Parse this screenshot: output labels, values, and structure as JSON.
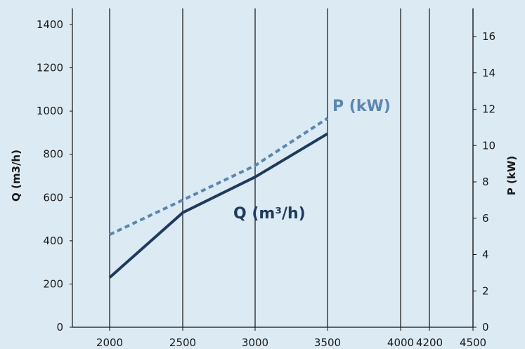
{
  "chart_data": {
    "type": "line",
    "background": "#dceaf3",
    "x": [
      2000,
      2500,
      3000,
      3500
    ],
    "x_ticks": [
      2000,
      2500,
      3000,
      3500,
      4000,
      4200,
      4500
    ],
    "y_left": {
      "label": "Q (m3/h)",
      "lim": [
        0,
        1400
      ],
      "ticks": [
        0,
        200,
        400,
        600,
        800,
        1000,
        1200,
        1400
      ]
    },
    "y_right": {
      "label": "P (kW)",
      "lim": [
        0,
        17
      ],
      "ticks": [
        0,
        2,
        4,
        6,
        8,
        10,
        12,
        14,
        16
      ]
    },
    "series": [
      {
        "name": "Q (m³/h)",
        "axis": "left",
        "style": "solid",
        "color": "#1f3a5f",
        "values": [
          230,
          530,
          695,
          895
        ]
      },
      {
        "name": "P (kW)",
        "axis": "right",
        "style": "dashed",
        "color": "#5b86b1",
        "values": [
          5.1,
          7.0,
          8.9,
          11.5
        ]
      }
    ],
    "grid": "vertical"
  }
}
